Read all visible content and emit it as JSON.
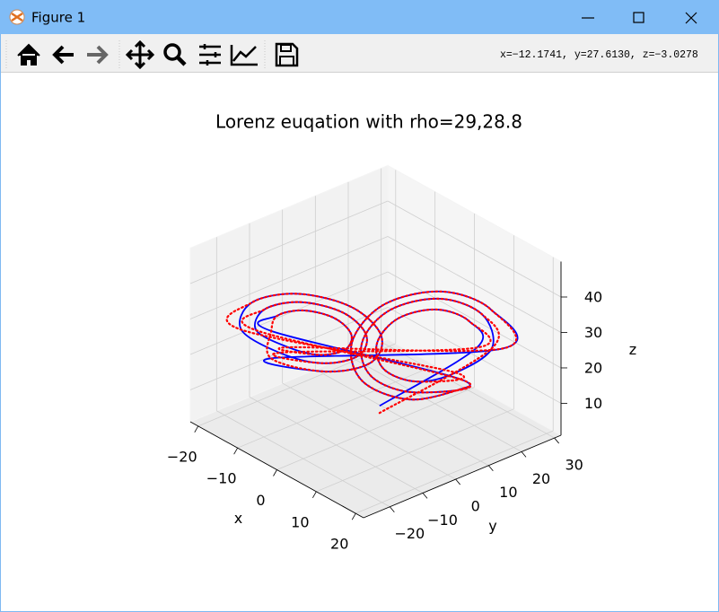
{
  "window": {
    "title": "Figure 1"
  },
  "toolbar": {
    "coordinates": "x=−12.1741,  y=27.6130,  z=−3.0278"
  },
  "chart_data": {
    "type": "line3d",
    "title": "Lorenz euqation with rho=29,28.8",
    "xlabel": "x",
    "ylabel": "y",
    "zlabel": "z",
    "xlim": [
      -22,
      22
    ],
    "ylim": [
      -28,
      32
    ],
    "zlim": [
      1,
      50
    ],
    "xticks": [
      {
        "value": -20,
        "label": "−20"
      },
      {
        "value": -10,
        "label": "−10"
      },
      0,
      10,
      20
    ],
    "yticks": [
      {
        "value": -20,
        "label": "−20"
      },
      {
        "value": -10,
        "label": "−10"
      },
      0,
      10,
      20,
      30
    ],
    "zticks": [
      10,
      20,
      30,
      40
    ],
    "grid": true,
    "series": [
      {
        "color": "#0000ff",
        "linestyle": "solid",
        "x": [
          1,
          14,
          12.3,
          8,
          3.7,
          2,
          3.7,
          8,
          12.3,
          15.8,
          13.6,
          8,
          2.4,
          0.2,
          2.4,
          8,
          13.6,
          -12.8,
          -11.4,
          -8,
          -4.6,
          -3.2,
          -4.6,
          -8,
          -11.4,
          -14.6,
          -12.7,
          -8,
          -3.3,
          -1.4,
          -3.3,
          -8,
          -12.7,
          -16.4,
          -14,
          -8,
          -2,
          0.4,
          -2,
          -8,
          -14,
          17,
          14.5,
          8,
          1.5,
          -1,
          1.5,
          8,
          14.5
        ],
        "y": [
          2,
          16,
          15.8,
          11,
          4.4,
          0,
          0.2,
          5,
          11.6,
          18.4,
          18.1,
          11.9,
          3.3,
          -2.4,
          -2.1,
          4.1,
          12.7,
          -14.4,
          -14.2,
          -10.4,
          -5.1,
          -1.6,
          -1.8,
          -5.6,
          -10.9,
          -16.8,
          -16.6,
          -11.3,
          -4,
          0.8,
          0.6,
          -4.7,
          -12,
          -19.2,
          -18.9,
          -12.2,
          -3,
          3.2,
          2.9,
          -3.8,
          -13,
          20,
          19.7,
          12.5,
          2.6,
          -4,
          -3.7,
          3.5,
          13.4
        ],
        "z": [
          8,
          27,
          33.4,
          36,
          33.4,
          27,
          20.6,
          18,
          20.6,
          27,
          35.3,
          38.7,
          35.3,
          27,
          18.7,
          15.3,
          18.7,
          27,
          32.1,
          34.2,
          32.1,
          27,
          21.9,
          19.8,
          21.9,
          27,
          34,
          36.9,
          34,
          27,
          20,
          17.1,
          20,
          27,
          36,
          39.6,
          36,
          27,
          18,
          14.4,
          18,
          27,
          36.6,
          40.5,
          36.6,
          27,
          17.4,
          13.5,
          17.4
        ]
      },
      {
        "color": "#ff0000",
        "linestyle": "dotted",
        "x": [
          1,
          15.8,
          13.6,
          8,
          2.4,
          0.2,
          2.4,
          8,
          13.6,
          -14.6,
          -12.7,
          -8,
          -3.3,
          -1.4,
          -3.3,
          -8,
          -12.7,
          14,
          12.3,
          8,
          3.7,
          2,
          3.7,
          8,
          12.3,
          -16.4,
          -14,
          -8,
          -2,
          0.4,
          -2,
          -8,
          -14,
          -12.8,
          -11.4,
          -8,
          -4.6,
          -3.2,
          -4.6,
          -8,
          -11.4,
          17,
          14.5,
          8,
          1.5,
          -1,
          1.5,
          8,
          14.5
        ],
        "y": [
          2,
          18.4,
          18.1,
          11.9,
          3.3,
          -2.4,
          -2.1,
          4.1,
          12.7,
          -16.8,
          -16.6,
          -11.3,
          -4,
          0.8,
          0.6,
          -4.7,
          -12,
          16,
          15.8,
          11,
          4.4,
          0,
          0.2,
          5,
          11.6,
          -19.2,
          -18.9,
          -12.2,
          -3,
          3.2,
          2.9,
          -3.8,
          -13,
          -14.4,
          -14.2,
          -10.4,
          -5.1,
          -1.6,
          -1.8,
          -5.6,
          -10.9,
          20,
          19.7,
          12.5,
          2.6,
          -4,
          -3.7,
          3.5,
          13.4
        ],
        "z": [
          6,
          27,
          35.3,
          38.7,
          35.3,
          27,
          18.7,
          15.3,
          18.7,
          27,
          34,
          36.9,
          34,
          27,
          20,
          17.1,
          20,
          27,
          33.4,
          36,
          33.4,
          27,
          20.6,
          18,
          20.6,
          27,
          36,
          39.6,
          36,
          27,
          18,
          14.4,
          18,
          27,
          32.1,
          34.2,
          32.1,
          27,
          21.9,
          19.8,
          21.9,
          27,
          36.6,
          40.5,
          36.6,
          27,
          17.4,
          13.5,
          17.4
        ]
      }
    ]
  }
}
